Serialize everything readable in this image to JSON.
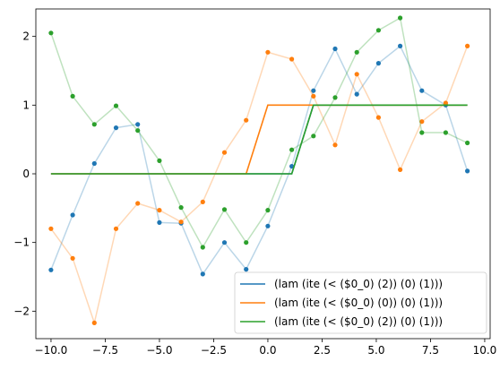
{
  "chart_data": {
    "type": "line",
    "title": "",
    "xlabel": "",
    "ylabel": "",
    "xlim": [
      -10.7,
      10.25
    ],
    "ylim": [
      -2.4,
      2.4
    ],
    "x_ticks": [
      -10.0,
      -7.5,
      -5.0,
      -2.5,
      0.0,
      2.5,
      5.0,
      7.5,
      10.0
    ],
    "x_tick_labels": [
      "−10.0",
      "−7.5",
      "−5.0",
      "−2.5",
      "0.0",
      "2.5",
      "5.0",
      "7.5",
      "10.0"
    ],
    "y_ticks": [
      -2,
      -1,
      0,
      1,
      2
    ],
    "y_tick_labels": [
      "−2",
      "−1",
      "0",
      "1",
      "2"
    ],
    "grid": false,
    "legend_position": "lower-right",
    "series": [
      {
        "name": "(lam (ite (< ($0_0) (2)) (0) (1)))",
        "color": "#1f77b4",
        "step": {
          "x": [
            -10.0,
            1.1,
            2.1,
            9.2
          ],
          "y": [
            0,
            0,
            1,
            1
          ]
        },
        "points": {
          "x": [
            -10.0,
            -9.0,
            -8.0,
            -7.0,
            -6.0,
            -5.0,
            -4.0,
            -3.0,
            -2.0,
            -1.0,
            0.0,
            1.1,
            2.1,
            3.1,
            4.1,
            5.1,
            6.1,
            7.1,
            8.2,
            9.2
          ],
          "y": [
            -1.4,
            -0.6,
            0.15,
            0.67,
            0.72,
            -0.71,
            -0.72,
            -1.46,
            -1.0,
            -1.39,
            -0.76,
            0.11,
            1.21,
            1.82,
            1.16,
            1.61,
            1.86,
            1.21,
            1.0,
            0.04
          ]
        }
      },
      {
        "name": "(lam (ite (< ($0_0) (0)) (0) (1)))",
        "color": "#ff7f0e",
        "step": {
          "x": [
            -10.0,
            -1.0,
            0.0,
            9.2
          ],
          "y": [
            0,
            0,
            1,
            1
          ]
        },
        "points": {
          "x": [
            -10.0,
            -9.0,
            -8.0,
            -7.0,
            -6.0,
            -5.0,
            -4.0,
            -3.0,
            -2.0,
            -1.0,
            0.0,
            1.1,
            2.1,
            3.1,
            4.1,
            5.1,
            6.1,
            7.1,
            8.2,
            9.2
          ],
          "y": [
            -0.8,
            -1.23,
            -2.17,
            -0.8,
            -0.43,
            -0.53,
            -0.7,
            -0.41,
            0.31,
            0.78,
            1.77,
            1.67,
            1.13,
            0.42,
            1.45,
            0.82,
            0.06,
            0.76,
            1.03,
            1.86
          ]
        }
      },
      {
        "name": "(lam (ite (< ($0_0) (2)) (0) (1)))",
        "color": "#2ca02c",
        "step": {
          "x": [
            -10.0,
            1.1,
            2.1,
            9.2
          ],
          "y": [
            0,
            0,
            1,
            1
          ]
        },
        "points": {
          "x": [
            -10.0,
            -9.0,
            -8.0,
            -7.0,
            -6.0,
            -5.0,
            -4.0,
            -3.0,
            -2.0,
            -1.0,
            0.0,
            1.1,
            2.1,
            3.1,
            4.1,
            5.1,
            6.1,
            7.1,
            8.2,
            9.2
          ],
          "y": [
            2.05,
            1.13,
            0.72,
            0.99,
            0.63,
            0.19,
            -0.49,
            -1.07,
            -0.52,
            -1.0,
            -0.53,
            0.35,
            0.55,
            1.11,
            1.77,
            2.09,
            2.27,
            0.6,
            0.6,
            0.45
          ]
        }
      }
    ]
  }
}
